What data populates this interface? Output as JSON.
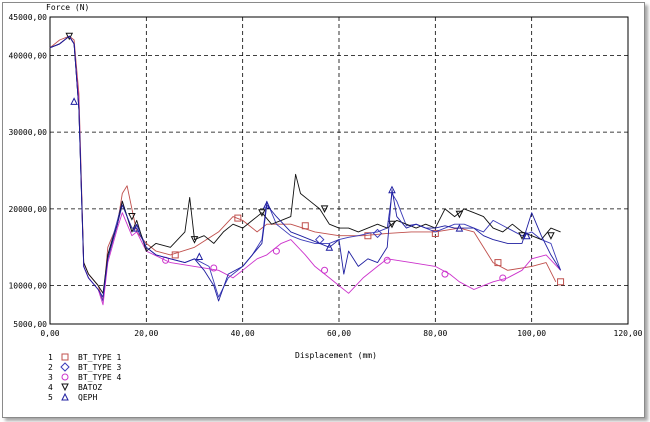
{
  "chart_data": {
    "type": "line",
    "title": "",
    "xlabel": "Displacement (mm)",
    "ylabel": "Force (N)",
    "xlim": [
      0,
      120
    ],
    "ylim": [
      5000,
      45000
    ],
    "xticks": [
      0,
      20,
      40,
      60,
      80,
      100,
      120
    ],
    "yticks": [
      5000,
      10000,
      20000,
      30000,
      40000,
      45000
    ],
    "xtick_labels": [
      "0,00",
      "20,00",
      "40,00",
      "60,00",
      "80,00",
      "100,00",
      "120,00"
    ],
    "ytick_labels": [
      "5000,00",
      "10000,00",
      "20000,00",
      "30000,00",
      "40000,00",
      "45000,00"
    ],
    "grid": true,
    "legend_position": "bottom-left",
    "series": [
      {
        "name": "BT_TYPE 1",
        "index": "1",
        "color": "#c0504d",
        "marker": "square",
        "x": [
          0,
          2,
          4,
          5,
          6,
          7,
          8,
          10,
          11,
          12,
          14,
          15,
          16,
          17,
          18,
          20,
          22,
          25,
          30,
          35,
          38,
          40,
          43,
          45,
          50,
          55,
          60,
          65,
          70,
          75,
          80,
          85,
          88,
          90,
          92,
          95,
          100,
          103,
          105
        ],
        "y": [
          41000,
          42000,
          42500,
          42000,
          35000,
          13000,
          11500,
          10000,
          8000,
          15000,
          18000,
          22000,
          23000,
          20000,
          17000,
          15500,
          14500,
          14000,
          15000,
          17000,
          19000,
          18500,
          17000,
          18000,
          18000,
          17000,
          16500,
          16500,
          16800,
          17000,
          17000,
          17500,
          17000,
          15000,
          13000,
          12000,
          12500,
          13000,
          10500
        ],
        "markers_x": [
          26,
          39,
          53,
          66,
          80,
          93,
          106
        ],
        "markers_y": [
          14000,
          18800,
          17800,
          16500,
          16800,
          13000,
          10500
        ]
      },
      {
        "name": "BT_TYPE 3",
        "index": "2",
        "color": "#3b3bb8",
        "marker": "diamond",
        "x": [
          0,
          2,
          4,
          5,
          6,
          7,
          8,
          10,
          11,
          12,
          14,
          15,
          16,
          17,
          18,
          20,
          22,
          25,
          28,
          30,
          33,
          35,
          37,
          40,
          42,
          44,
          45,
          47,
          50,
          52,
          55,
          58,
          60,
          62,
          64,
          66,
          68,
          70,
          71,
          72,
          74,
          76,
          78,
          80,
          82,
          84,
          86,
          88,
          90,
          92,
          95,
          98,
          100,
          102,
          104,
          106
        ],
        "y": [
          41000,
          41500,
          42500,
          41500,
          33000,
          12500,
          11000,
          9500,
          8000,
          14000,
          18500,
          21000,
          19000,
          17000,
          18000,
          15000,
          14000,
          13500,
          13000,
          13500,
          12500,
          8500,
          11000,
          12500,
          14000,
          16000,
          21000,
          18000,
          16500,
          16000,
          15500,
          15500,
          16000,
          16300,
          16500,
          16800,
          17000,
          17500,
          22000,
          21000,
          17800,
          18000,
          17500,
          17000,
          17500,
          18000,
          18000,
          17500,
          17000,
          18500,
          17500,
          16500,
          17000,
          16000,
          15500,
          12000
        ],
        "markers_x": [
          56,
          68
        ],
        "markers_y": [
          16000,
          16800
        ]
      },
      {
        "name": "BT_TYPE 4",
        "index": "3",
        "color": "#cc33cc",
        "marker": "circle",
        "x": [
          0,
          2,
          4,
          5,
          6,
          7,
          8,
          10,
          11,
          12,
          14,
          15,
          16,
          17,
          18,
          20,
          25,
          30,
          35,
          38,
          40,
          43,
          45,
          48,
          50,
          53,
          55,
          58,
          60,
          62,
          65,
          68,
          70,
          75,
          80,
          83,
          85,
          88,
          90,
          92,
          95,
          98,
          100,
          103,
          106
        ],
        "y": [
          41000,
          41500,
          42500,
          41500,
          34000,
          12500,
          11000,
          9500,
          7500,
          13000,
          17500,
          19500,
          18000,
          16500,
          17000,
          14500,
          13000,
          12500,
          12000,
          11000,
          12000,
          13500,
          14000,
          15500,
          16000,
          14000,
          12500,
          11000,
          10000,
          9000,
          11000,
          12500,
          13500,
          13000,
          12500,
          11500,
          10500,
          9500,
          10000,
          10500,
          11000,
          12000,
          13500,
          14000,
          12000
        ],
        "markers_x": [
          24,
          34,
          47,
          57,
          70,
          82,
          94
        ],
        "markers_y": [
          13300,
          12300,
          14500,
          12000,
          13300,
          11500,
          11000
        ]
      },
      {
        "name": "BATOZ",
        "index": "4",
        "color": "#111111",
        "marker": "triangle-down",
        "x": [
          0,
          2,
          4,
          5,
          6,
          7,
          8,
          10,
          11,
          12,
          14,
          15,
          16,
          17,
          18,
          20,
          22,
          25,
          28,
          29,
          30,
          32,
          34,
          36,
          38,
          40,
          42,
          44,
          46,
          48,
          50,
          51,
          52,
          54,
          56,
          58,
          60,
          62,
          64,
          66,
          68,
          70,
          72,
          74,
          76,
          78,
          80,
          82,
          84,
          86,
          88,
          90,
          92,
          94,
          96,
          98,
          100,
          102,
          104,
          106
        ],
        "y": [
          41000,
          41500,
          42500,
          41500,
          33000,
          13000,
          11500,
          10000,
          9000,
          14000,
          18000,
          21000,
          19000,
          17000,
          18500,
          14500,
          15500,
          15000,
          17000,
          21500,
          16000,
          16500,
          15500,
          17000,
          18000,
          17500,
          18500,
          19500,
          18000,
          18500,
          19000,
          24500,
          22000,
          21000,
          20000,
          18000,
          17500,
          17500,
          17000,
          17500,
          18000,
          17500,
          18500,
          18000,
          17500,
          18000,
          17500,
          20000,
          19000,
          20000,
          19500,
          19000,
          17500,
          17000,
          18000,
          17000,
          16500,
          16000,
          17500,
          17000
        ],
        "markers_x": [
          4,
          17,
          30,
          44,
          57,
          71,
          85,
          98,
          104
        ],
        "markers_y": [
          42500,
          19000,
          16000,
          19500,
          20000,
          18000,
          19300,
          16500,
          16500
        ]
      },
      {
        "name": "QEPH",
        "index": "5",
        "color": "#1f1fa0",
        "marker": "triangle-up",
        "x": [
          0,
          2,
          4,
          5,
          6,
          7,
          8,
          10,
          11,
          12,
          14,
          15,
          16,
          17,
          18,
          20,
          22,
          25,
          28,
          30,
          32,
          34,
          35,
          37,
          40,
          42,
          44,
          45,
          47,
          50,
          52,
          54,
          56,
          58,
          60,
          61,
          62,
          64,
          66,
          68,
          70,
          71,
          72,
          74,
          76,
          78,
          80,
          82,
          84,
          86,
          88,
          90,
          92,
          95,
          98,
          100,
          102,
          104,
          106
        ],
        "y": [
          41000,
          41500,
          42500,
          41500,
          33000,
          12500,
          11000,
          9500,
          8500,
          13500,
          18000,
          20500,
          19000,
          17500,
          17500,
          15000,
          14000,
          13500,
          13000,
          13500,
          12000,
          10000,
          8000,
          11500,
          12500,
          14000,
          15500,
          20500,
          19000,
          17000,
          16500,
          16000,
          15500,
          15000,
          16000,
          11500,
          14500,
          12500,
          13500,
          13000,
          15000,
          22500,
          19000,
          17500,
          18000,
          17500,
          17500,
          17800,
          17500,
          17500,
          17500,
          16500,
          16000,
          15500,
          15500,
          19500,
          16500,
          14000,
          12000
        ],
        "markers_x": [
          5,
          18,
          31,
          45,
          58,
          71,
          85,
          99
        ],
        "markers_y": [
          34000,
          17500,
          13800,
          20500,
          15000,
          22500,
          17500,
          16500
        ]
      }
    ]
  }
}
